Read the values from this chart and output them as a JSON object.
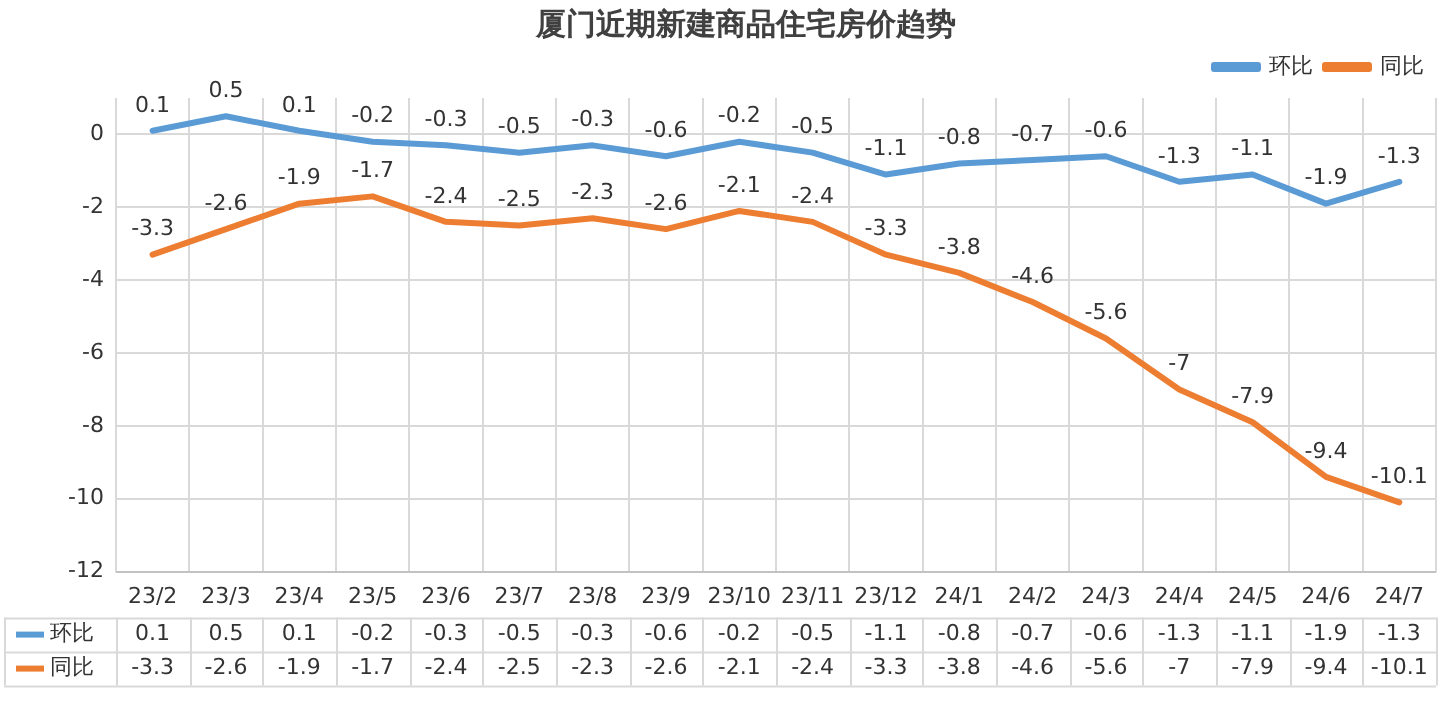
{
  "chart_data": {
    "type": "line",
    "title": "厦门近期新建商品住宅房价趋势",
    "categories": [
      "23/2",
      "23/3",
      "23/4",
      "23/5",
      "23/6",
      "23/7",
      "23/8",
      "23/9",
      "23/10",
      "23/11",
      "23/12",
      "24/1",
      "24/2",
      "24/3",
      "24/4",
      "24/5",
      "24/6",
      "24/7"
    ],
    "series": [
      {
        "name": "环比",
        "color": "#5b9bd5",
        "values": [
          0.1,
          0.5,
          0.1,
          -0.2,
          -0.3,
          -0.5,
          -0.3,
          -0.6,
          -0.2,
          -0.5,
          -1.1,
          -0.8,
          -0.7,
          -0.6,
          -1.3,
          -1.1,
          -1.9,
          -1.3
        ]
      },
      {
        "name": "同比",
        "color": "#ed7d31",
        "values": [
          -3.3,
          -2.6,
          -1.9,
          -1.7,
          -2.4,
          -2.5,
          -2.3,
          -2.6,
          -2.1,
          -2.4,
          -3.3,
          -3.8,
          -4.6,
          -5.6,
          -7,
          -7.9,
          -9.4,
          -10.1
        ]
      }
    ],
    "annotations": [
      "0.1",
      "0.5",
      "0.1",
      "-0.2",
      "-0.3",
      "-0.5",
      "-0.3",
      "-0.6",
      "-0.2",
      "-0.5",
      "-1.1",
      "-0.8",
      "-0.7",
      "-0.6",
      "-1.3",
      "-1.1",
      "-1.9",
      "-1.3",
      "-3.3",
      "-2.6",
      "-1.9",
      "-1.7",
      "-2.4",
      "-2.5",
      "-2.3",
      "-2.6",
      "-2.1",
      "-2.4",
      "-3.3",
      "-3.8",
      "-4.6",
      "-5.6",
      "-7",
      "-7.9",
      "-9.4",
      "-10.1"
    ],
    "ylim": [
      -12,
      1
    ],
    "yticks": [
      -12,
      -10,
      -8,
      -6,
      -4,
      -2,
      0
    ],
    "grid": true,
    "legend": "top right",
    "data_labels": true,
    "marker": "none",
    "line_style": "solid"
  }
}
